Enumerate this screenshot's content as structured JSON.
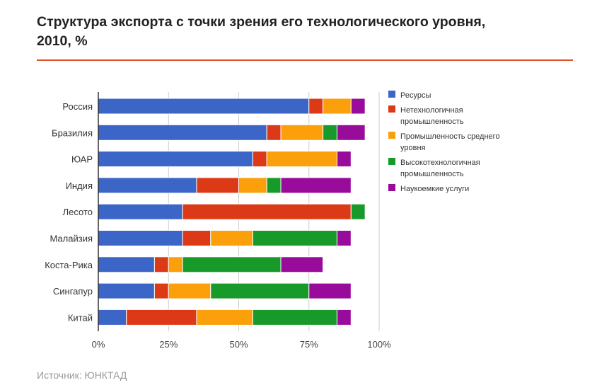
{
  "header": {
    "title_line1": "Структура экспорта с точки зрения его технологического уровня,",
    "title_line2": "2010, %"
  },
  "footer": {
    "source": "Источник: ЮНКТАД"
  },
  "chart_data": {
    "type": "bar",
    "orientation": "horizontal",
    "stacked": true,
    "title": "Структура экспорта с точки зрения его технологического уровня, 2010, %",
    "xlabel": "",
    "ylabel": "",
    "xlim": [
      0,
      100
    ],
    "x_ticks": [
      0,
      25,
      50,
      75,
      100
    ],
    "x_tick_labels": [
      "0%",
      "25%",
      "50%",
      "75%",
      "100%"
    ],
    "grid": true,
    "legend_position": "right",
    "categories": [
      "Россия",
      "Бразилия",
      "ЮАР",
      "Индия",
      "Лесото",
      "Малайзия",
      "Коста-Рика",
      "Сингапур",
      "Китай"
    ],
    "series": [
      {
        "name": "Ресурсы",
        "legend_lines": [
          "Ресурсы"
        ],
        "color": "#3b66c8",
        "values": [
          75,
          60,
          55,
          35,
          30,
          30,
          20,
          20,
          10
        ]
      },
      {
        "name": "Нетехнологичная промышленность",
        "legend_lines": [
          "Нетехнологичная",
          "промышленность"
        ],
        "color": "#dc3a17",
        "values": [
          5,
          5,
          5,
          15,
          60,
          10,
          5,
          5,
          25
        ]
      },
      {
        "name": "Промышленность среднего уровня",
        "legend_lines": [
          "Промышленность среднего",
          "уровня"
        ],
        "color": "#fb9f0a",
        "values": [
          10,
          15,
          25,
          10,
          0,
          15,
          5,
          15,
          20
        ]
      },
      {
        "name": "Высокотехнологичная промышленность",
        "legend_lines": [
          "Высокотехнологичная",
          "промышленность"
        ],
        "color": "#189a2a",
        "values": [
          0,
          5,
          0,
          5,
          5,
          30,
          35,
          35,
          30
        ]
      },
      {
        "name": "Наукоемкие услуги",
        "legend_lines": [
          "Наукоемкие услуги"
        ],
        "color": "#990b9b",
        "values": [
          5,
          10,
          5,
          25,
          0,
          5,
          15,
          15,
          5
        ]
      }
    ]
  }
}
